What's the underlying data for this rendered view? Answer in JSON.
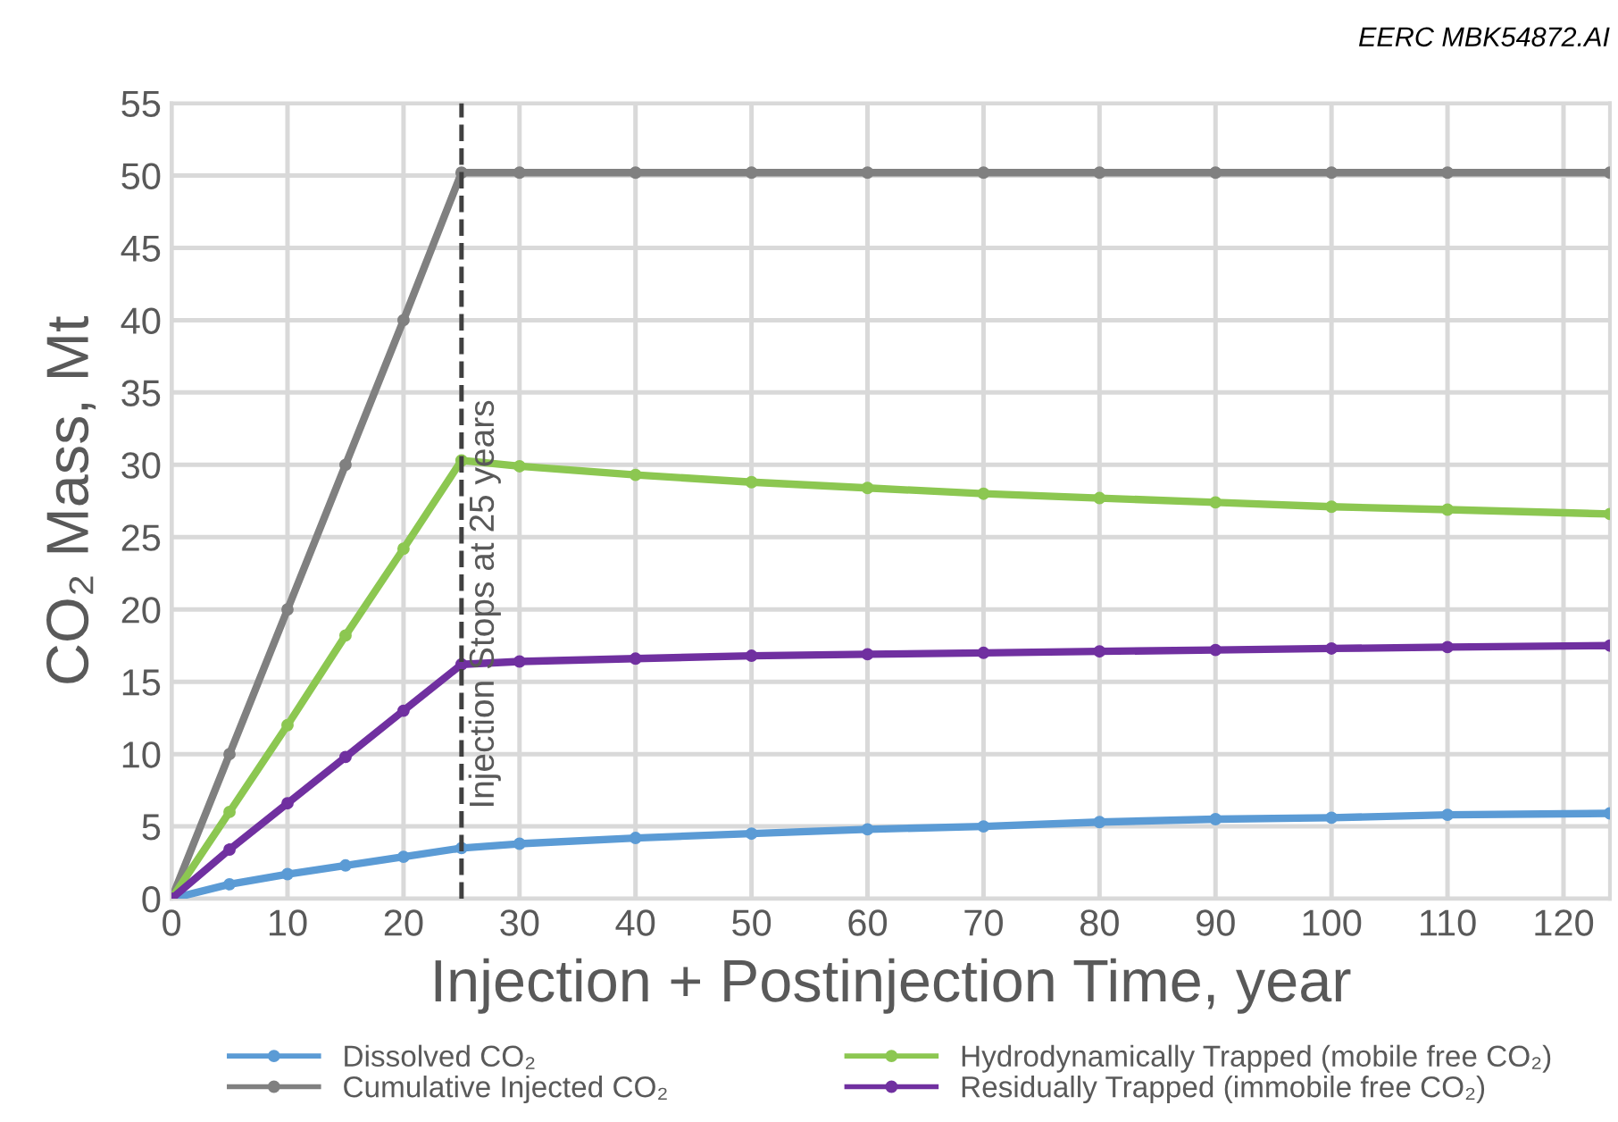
{
  "chart_data": {
    "type": "line",
    "xlabel": "Injection + Postinjection Time, year",
    "ylabel": "CO₂ Mass, Mt",
    "x": [
      0,
      5,
      10,
      15,
      20,
      25,
      30,
      40,
      50,
      60,
      70,
      80,
      90,
      100,
      110,
      124
    ],
    "series": [
      {
        "name": "Dissolved CO₂",
        "color": "#5b9bd5",
        "values": [
          0,
          1.0,
          1.7,
          2.3,
          2.9,
          3.5,
          3.8,
          4.2,
          4.5,
          4.8,
          5.0,
          5.3,
          5.5,
          5.6,
          5.8,
          5.9
        ]
      },
      {
        "name": "Cumulative Injected CO₂",
        "color": "#808080",
        "values": [
          0,
          10,
          20,
          30,
          40,
          50.2,
          50.2,
          50.2,
          50.2,
          50.2,
          50.2,
          50.2,
          50.2,
          50.2,
          50.2,
          50.2
        ]
      },
      {
        "name": "Hydrodynamically Trapped (mobile free CO₂)",
        "color": "#8cc751",
        "values": [
          0,
          6,
          12,
          18.2,
          24.2,
          30.3,
          29.9,
          29.3,
          28.8,
          28.4,
          28.0,
          27.7,
          27.4,
          27.1,
          26.9,
          26.6
        ]
      },
      {
        "name": "Residually Trapped (immobile free CO₂)",
        "color": "#7030a0",
        "values": [
          0,
          3.4,
          6.6,
          9.8,
          13.0,
          16.2,
          16.4,
          16.6,
          16.8,
          16.9,
          17.0,
          17.1,
          17.2,
          17.3,
          17.4,
          17.5
        ]
      }
    ],
    "xlim": [
      0,
      124
    ],
    "xticks": [
      0,
      10,
      20,
      30,
      40,
      50,
      60,
      70,
      80,
      90,
      100,
      110,
      120
    ],
    "ylim": [
      0,
      55
    ],
    "yticks": [
      0,
      5,
      10,
      15,
      20,
      25,
      30,
      35,
      40,
      45,
      50,
      55
    ],
    "ref_lines": [
      {
        "axis": "x",
        "value": 25,
        "label": "Injection Stops at 25 years",
        "color": "#404040",
        "line_style": "dashed"
      }
    ],
    "annotations": [
      "EERC MBK54872.AI"
    ],
    "grid": true,
    "legend": "bottom",
    "marker": "circle",
    "line_style": "solid"
  }
}
